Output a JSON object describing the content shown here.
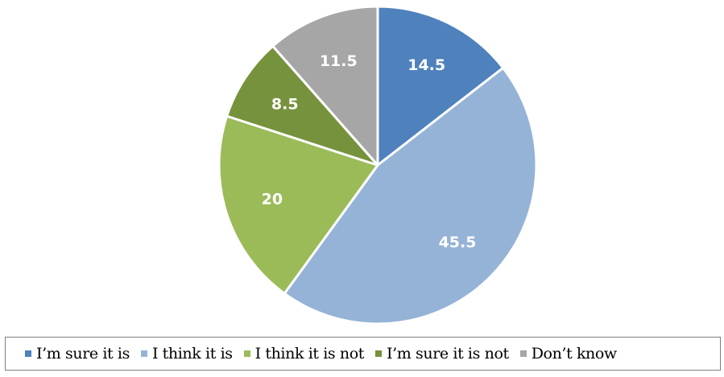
{
  "chart_data": {
    "type": "pie",
    "title": "",
    "categories": [
      "I’m sure it is",
      "I think it is",
      "I think it is not",
      "I’m sure it is not",
      "Don’t know"
    ],
    "values": [
      14.5,
      45.5,
      20,
      8.5,
      11.5
    ],
    "data_labels": [
      "14.5",
      "45.5",
      "20",
      "8.5",
      "11.5"
    ],
    "colors": [
      "#4f81bd",
      "#95b3d7",
      "#9bbb59",
      "#76923c",
      "#a6a6a6"
    ],
    "start_angle": "12 o'clock",
    "direction": "clockwise",
    "legend_position": "bottom"
  }
}
